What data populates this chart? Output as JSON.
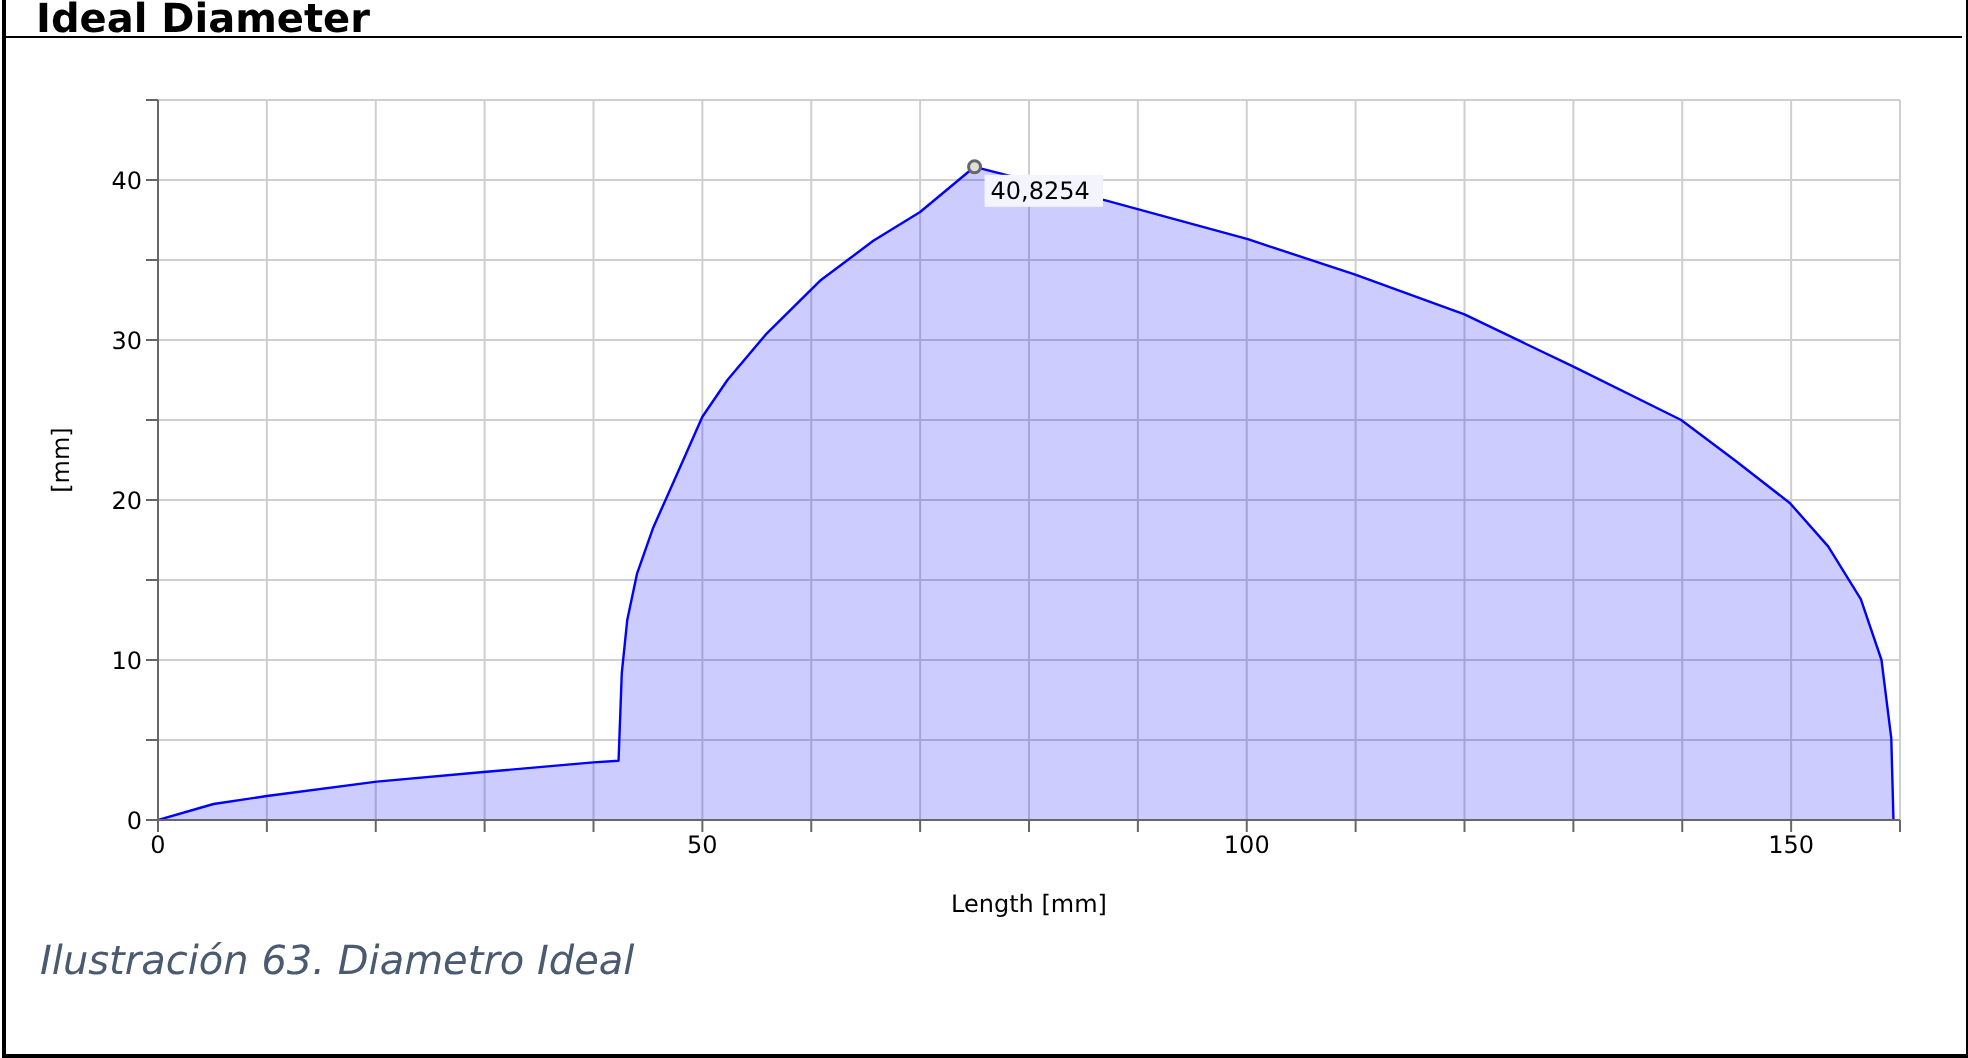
{
  "chart_data": {
    "type": "area",
    "title": "Ideal Diameter",
    "xlabel": "Length [mm]",
    "ylabel": "[mm]",
    "x": [
      0,
      5.1,
      10,
      20.1,
      29.9,
      40,
      42.3,
      42.6,
      43.1,
      44,
      45.5,
      47.4,
      50,
      52.3,
      55.9,
      60.8,
      65.7,
      70,
      75,
      87.2,
      100.1,
      109.9,
      120,
      130.1,
      139.9,
      144.8,
      149.9,
      153.4,
      156.4,
      158.3,
      159.2,
      159.4
    ],
    "series": [
      {
        "color": "#0000ff",
        "values": [
          0,
          1.0,
          1.5,
          2.4,
          3.0,
          3.6,
          3.7,
          9.2,
          12.5,
          15.4,
          18.3,
          21.2,
          25.2,
          27.5,
          30.4,
          33.7,
          36.2,
          38.0,
          40.8254,
          38.7,
          36.3,
          34.1,
          31.6,
          28.3,
          25.0,
          22.5,
          19.8,
          17.1,
          13.8,
          10.0,
          5.1,
          0
        ]
      }
    ],
    "xlim": [
      0,
      160
    ],
    "xticks": [
      0,
      {
        "value": 10,
        "label": null
      },
      {
        "value": 20,
        "label": null
      },
      {
        "value": 30,
        "label": null
      },
      {
        "value": 40,
        "label": null
      },
      50,
      {
        "value": 60,
        "label": null
      },
      {
        "value": 70,
        "label": null
      },
      {
        "value": 80,
        "label": null
      },
      {
        "value": 90,
        "label": null
      },
      100,
      {
        "value": 110,
        "label": null
      },
      {
        "value": 120,
        "label": null
      },
      {
        "value": 130,
        "label": null
      },
      {
        "value": 140,
        "label": null
      },
      150,
      {
        "value": 160,
        "label": null
      }
    ],
    "ylim": [
      0,
      45
    ],
    "yticks": [
      0,
      {
        "value": 5,
        "label": null
      },
      10,
      {
        "value": 15,
        "label": null
      },
      20,
      {
        "value": 25,
        "label": null
      },
      30,
      {
        "value": 35,
        "label": null
      },
      40,
      {
        "value": 45,
        "label": null
      }
    ],
    "grid": true,
    "legend": false,
    "annotations": [
      {
        "text": "40,8254",
        "x": 75,
        "y": 40.8254
      },
      "Ilustración 63. Diametro Ideal"
    ]
  }
}
